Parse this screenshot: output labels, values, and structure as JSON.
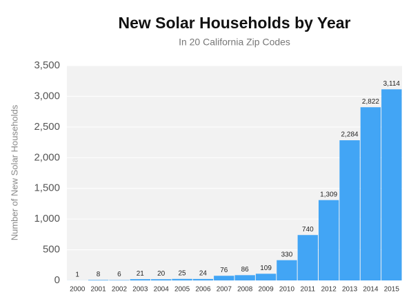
{
  "chart_data": {
    "type": "bar",
    "title": "New Solar Households by Year",
    "subtitle": "In 20 California Zip Codes",
    "y_label": "Number of New Solar Households",
    "categories": [
      "2000",
      "2001",
      "2002",
      "2003",
      "2004",
      "2005",
      "2006",
      "2007",
      "2008",
      "2009",
      "2010",
      "2011",
      "2012",
      "2013",
      "2014",
      "2015"
    ],
    "values": [
      1,
      8,
      6,
      21,
      20,
      25,
      24,
      76,
      86,
      109,
      330,
      740,
      1309,
      2284,
      2822,
      3114
    ],
    "value_labels": [
      "1",
      "8",
      "6",
      "21",
      "20",
      "25",
      "24",
      "76",
      "86",
      "109",
      "330",
      "740",
      "1,309",
      "2,284",
      "2,822",
      "3,114"
    ],
    "color": "#42a5f5",
    "ylim": [
      0,
      3500
    ],
    "yticks": [
      0,
      500,
      {
        "value": 1000,
        "label": "1,000"
      },
      {
        "value": 1500,
        "label": "1,500"
      },
      {
        "value": 2000,
        "label": "2,000"
      },
      {
        "value": 2500,
        "label": "2,500"
      },
      {
        "value": 3000,
        "label": "3,000"
      },
      {
        "value": 3500,
        "label": "3,500"
      }
    ],
    "grid": true
  }
}
